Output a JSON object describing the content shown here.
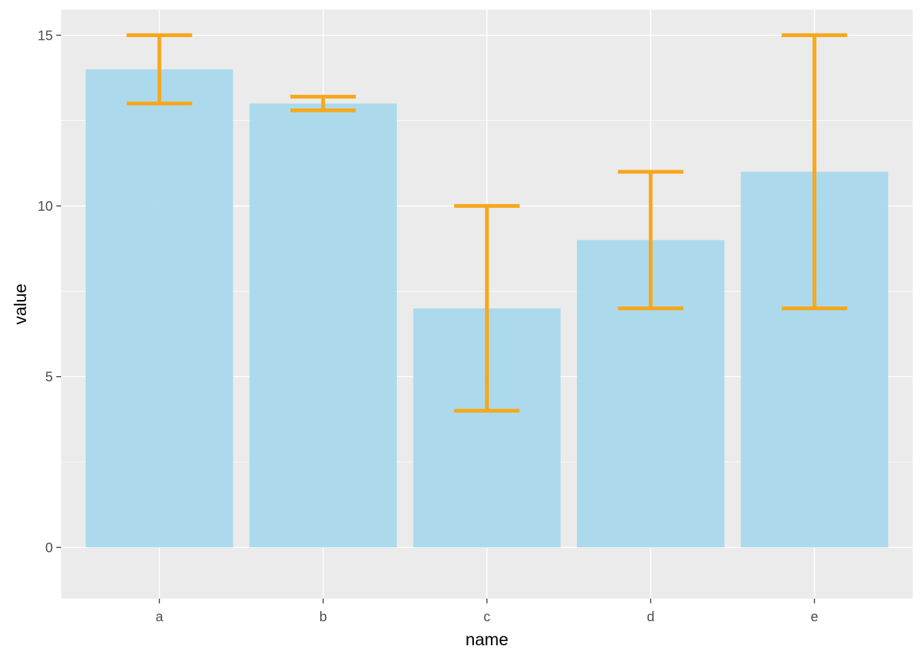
{
  "chart_data": {
    "type": "bar",
    "title": "",
    "xlabel": "name",
    "ylabel": "value",
    "categories": [
      "a",
      "b",
      "c",
      "d",
      "e"
    ],
    "values": [
      14,
      13,
      7,
      9,
      11
    ],
    "error_low": [
      13,
      12.8,
      4,
      7,
      7
    ],
    "error_high": [
      15,
      13.2,
      10,
      11,
      15
    ],
    "ylim": [
      -1.5,
      15.75
    ],
    "y_ticks": [
      0,
      5,
      10,
      15
    ],
    "y_tick_labels": [
      "0",
      "5",
      "10",
      "15"
    ],
    "grid": true,
    "legend": "none",
    "colors": {
      "panel_bg": "#ebebeb",
      "grid": "#ffffff",
      "bar": "#a6d8eb",
      "errorbar": "#f6a81c",
      "tick_text": "#4d4d4d",
      "tick_mark": "#333333"
    }
  }
}
